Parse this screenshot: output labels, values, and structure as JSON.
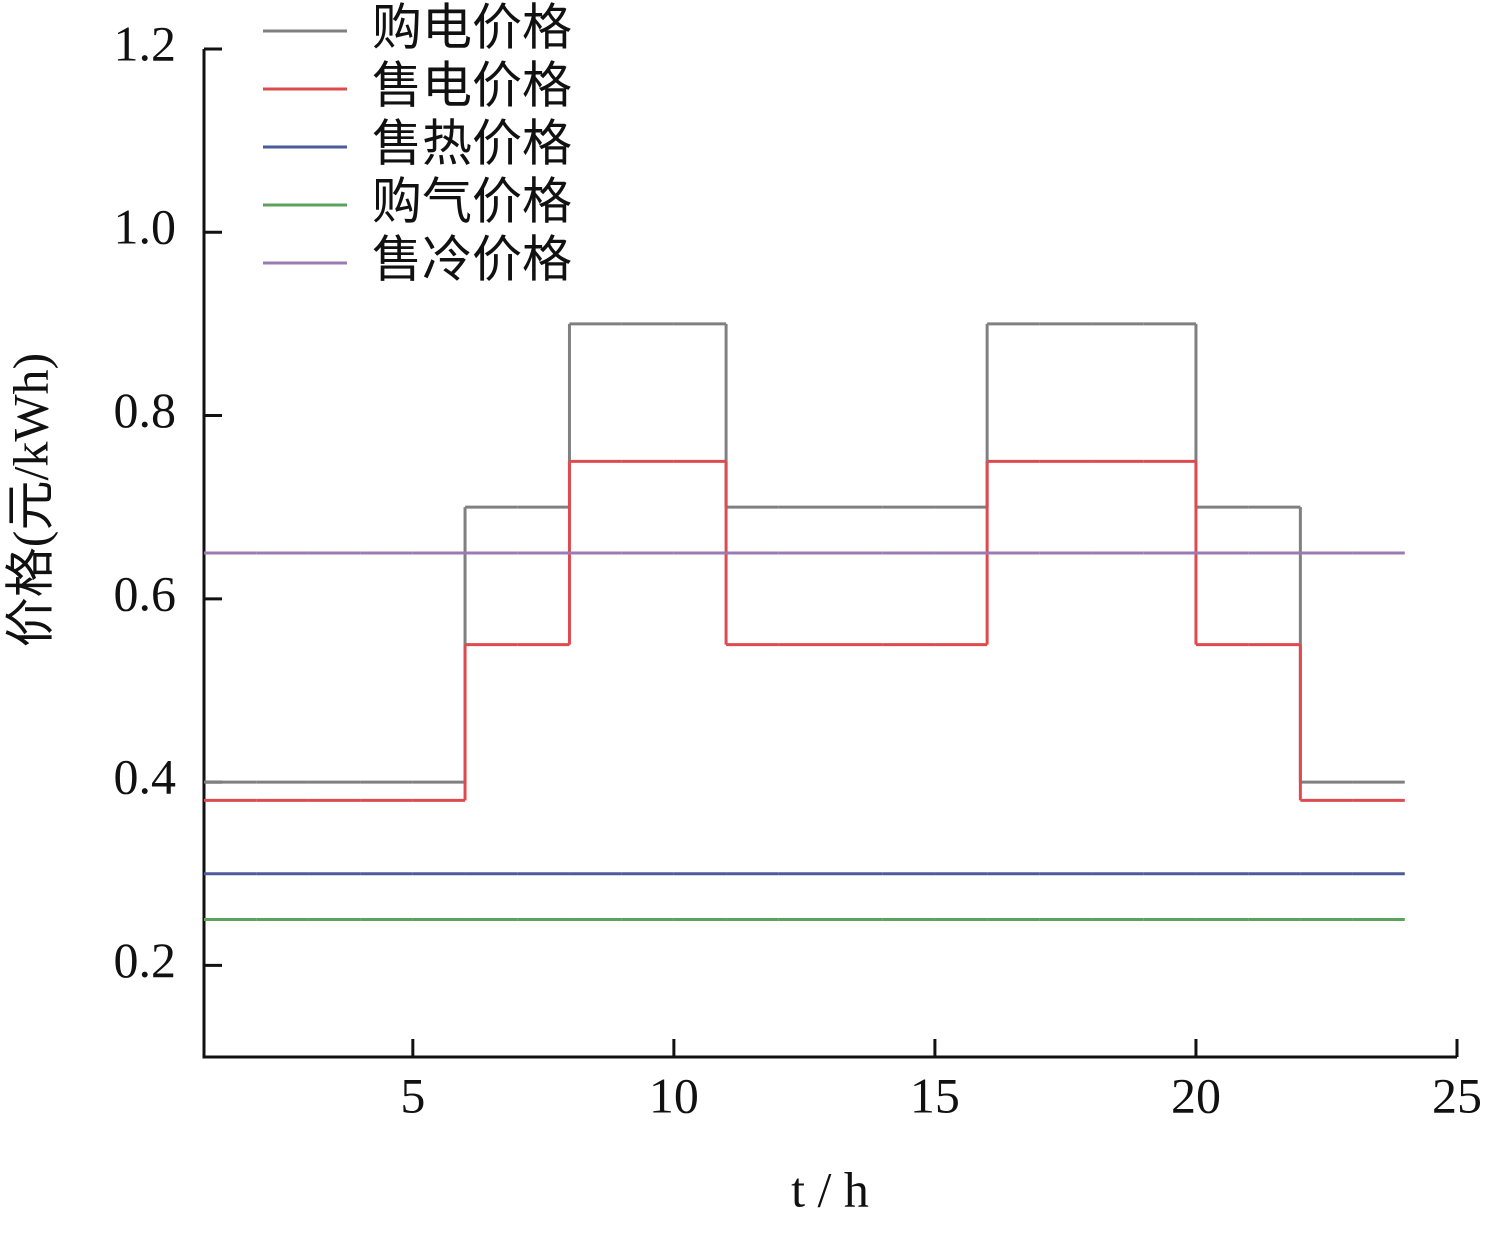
{
  "chart_data": {
    "type": "line",
    "step": "post",
    "xlabel": "t / h",
    "ylabel": "价格(元/kWh)",
    "x": [
      1,
      2,
      3,
      4,
      5,
      6,
      7,
      8,
      9,
      10,
      11,
      12,
      13,
      14,
      15,
      16,
      17,
      18,
      19,
      20,
      21,
      22,
      23,
      24
    ],
    "series": [
      {
        "name": "购电价格",
        "color": "#808080",
        "values": [
          0.4,
          0.4,
          0.4,
          0.4,
          0.4,
          0.7,
          0.7,
          0.9,
          0.9,
          0.9,
          0.7,
          0.7,
          0.7,
          0.7,
          0.7,
          0.9,
          0.9,
          0.9,
          0.9,
          0.7,
          0.7,
          0.4,
          0.4,
          0.4
        ]
      },
      {
        "name": "售电价格",
        "color": "#de4b4f",
        "values": [
          0.38,
          0.38,
          0.38,
          0.38,
          0.38,
          0.55,
          0.55,
          0.75,
          0.75,
          0.75,
          0.55,
          0.55,
          0.55,
          0.55,
          0.55,
          0.75,
          0.75,
          0.75,
          0.75,
          0.55,
          0.55,
          0.38,
          0.38,
          0.38
        ]
      },
      {
        "name": "售热价格",
        "color": "#4b5b9c",
        "values": [
          0.3,
          0.3,
          0.3,
          0.3,
          0.3,
          0.3,
          0.3,
          0.3,
          0.3,
          0.3,
          0.3,
          0.3,
          0.3,
          0.3,
          0.3,
          0.3,
          0.3,
          0.3,
          0.3,
          0.3,
          0.3,
          0.3,
          0.3,
          0.3
        ]
      },
      {
        "name": "购气价格",
        "color": "#5ba35c",
        "values": [
          0.25,
          0.25,
          0.25,
          0.25,
          0.25,
          0.25,
          0.25,
          0.25,
          0.25,
          0.25,
          0.25,
          0.25,
          0.25,
          0.25,
          0.25,
          0.25,
          0.25,
          0.25,
          0.25,
          0.25,
          0.25,
          0.25,
          0.25,
          0.25
        ]
      },
      {
        "name": "售冷价格",
        "color": "#9b7bb6",
        "values": [
          0.65,
          0.65,
          0.65,
          0.65,
          0.65,
          0.65,
          0.65,
          0.65,
          0.65,
          0.65,
          0.65,
          0.65,
          0.65,
          0.65,
          0.65,
          0.65,
          0.65,
          0.65,
          0.65,
          0.65,
          0.65,
          0.65,
          0.65,
          0.65
        ]
      }
    ],
    "xlim": [
      1,
      25
    ],
    "xticks": [
      5,
      10,
      15,
      20,
      25
    ],
    "ylim": [
      0.1,
      1.2
    ],
    "yticks": [
      0.2,
      0.4,
      0.6,
      0.8,
      {
        "value": 1.0,
        "label": "1.0"
      },
      1.2
    ],
    "legend": "upper left",
    "grid": false
  }
}
